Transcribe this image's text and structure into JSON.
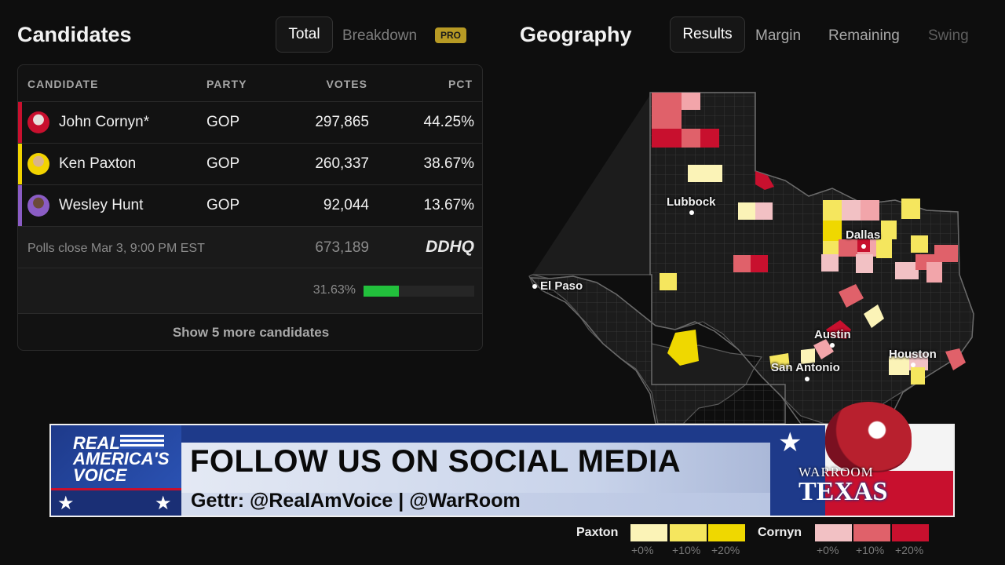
{
  "candidates": {
    "title": "Candidates",
    "tab_total": "Total",
    "tab_breakdown": "Breakdown",
    "pro_badge": "PRO",
    "headers": [
      "CANDIDATE",
      "PARTY",
      "VOTES",
      "PCT"
    ],
    "rows": [
      {
        "name": "John Cornyn*",
        "party": "GOP",
        "votes": "297,865",
        "pct": "44.25%",
        "color": "#c8102e"
      },
      {
        "name": "Ken Paxton",
        "party": "GOP",
        "votes": "260,337",
        "pct": "38.67%",
        "color": "#f2d300"
      },
      {
        "name": "Wesley Hunt",
        "party": "GOP",
        "votes": "92,044",
        "pct": "13.67%",
        "color": "#8a5cc4"
      }
    ],
    "polls_close": "Polls close Mar 3, 9:00 PM EST",
    "total_votes": "673,189",
    "source_logo": "DDHQ",
    "reporting_pct": "31.63%",
    "reporting_fraction": 0.3163,
    "show_more": "Show 5 more candidates"
  },
  "geography": {
    "title": "Geography",
    "tabs": [
      "Results",
      "Margin",
      "Remaining",
      "Swing"
    ],
    "active_tab": "Results",
    "cities": [
      "Lubbock",
      "Dallas",
      "El Paso",
      "Austin",
      "San Antonio",
      "Houston"
    ]
  },
  "banner": {
    "rav_line1": "REAL",
    "rav_line2": "AMERICA'S",
    "rav_line3": "VOICE",
    "headline": "FOLLOW US ON SOCIAL MEDIA",
    "subline": "Gettr: @RealAmVoice | @WarRoom",
    "logo_line1": "WARROOM",
    "logo_line2": "TEXAS"
  },
  "legend": {
    "paxton_label": "Paxton",
    "cornyn_label": "Cornyn",
    "paxton_colors": [
      "#fbf3b7",
      "#f5e65e",
      "#efd800"
    ],
    "cornyn_colors": [
      "#f2c1c4",
      "#e0616a",
      "#c8102e"
    ],
    "steps": [
      "+0%",
      "+10%",
      "+20%"
    ]
  }
}
